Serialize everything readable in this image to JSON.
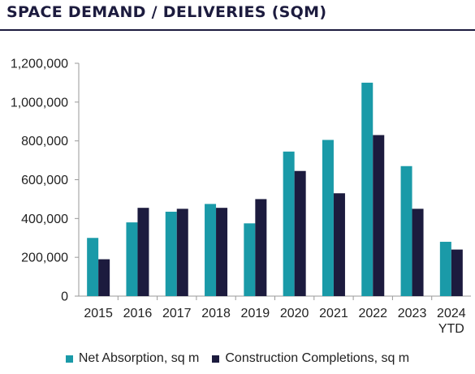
{
  "colors": {
    "title": "#1c1b3e",
    "series_0": "#1a9aa8",
    "series_1": "#1c1b3e",
    "axis": "#9a9a9a"
  },
  "chart_data": {
    "type": "bar",
    "title": "SPACE DEMAND / DELIVERIES (SQM)",
    "xlabel": "",
    "ylabel": "",
    "ylim": [
      0,
      1200000
    ],
    "y_ticks": [
      "0",
      "200,000",
      "400,000",
      "600,000",
      "800,000",
      "1,000,000",
      "1,200,000"
    ],
    "grid": false,
    "legend": "bottom",
    "categories": [
      "2015",
      "2016",
      "2017",
      "2018",
      "2019",
      "2020",
      "2021",
      "2022",
      "2023",
      "2024\nYTD"
    ],
    "series": [
      {
        "name": "Net Absorption, sq m",
        "color": "#1a9aa8",
        "values": [
          300000,
          380000,
          435000,
          475000,
          375000,
          745000,
          805000,
          1100000,
          670000,
          280000
        ]
      },
      {
        "name": "Construction Completions, sq m",
        "color": "#1c1b3e",
        "values": [
          190000,
          455000,
          450000,
          455000,
          500000,
          645000,
          530000,
          830000,
          450000,
          240000
        ]
      }
    ]
  }
}
